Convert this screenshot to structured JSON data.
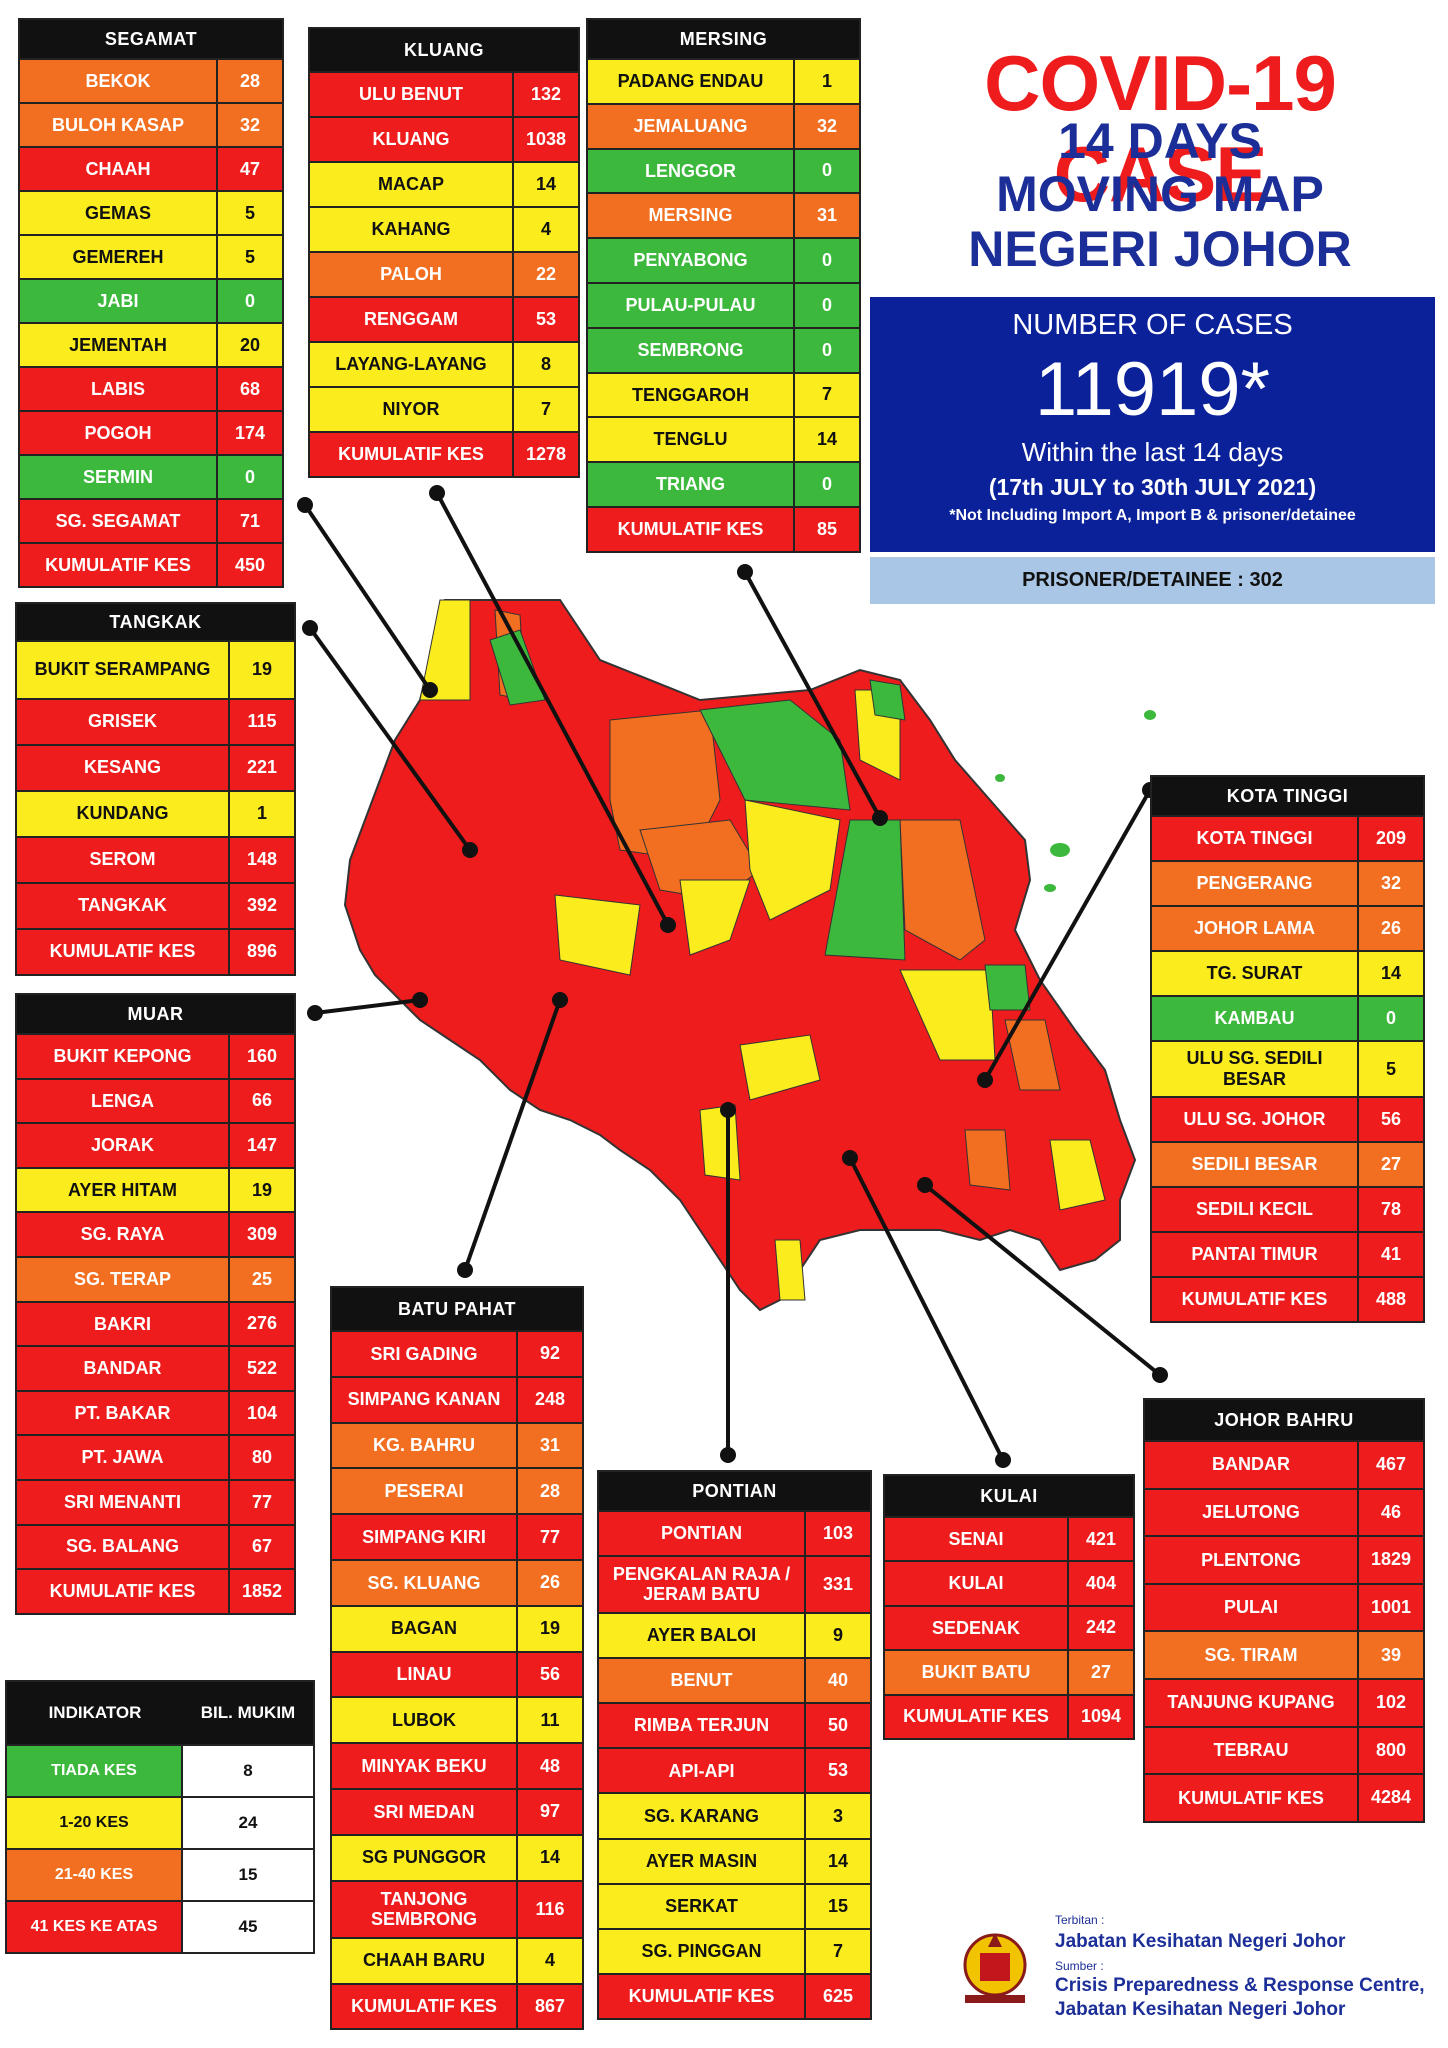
{
  "title": {
    "line1": "COVID-19 CASE",
    "line2": "14 DAYS",
    "line3": "MOVING MAP",
    "line4": "NEGERI JOHOR"
  },
  "summary": {
    "label": "NUMBER OF CASES",
    "count": "11919*",
    "period_line": "Within the last 14 days",
    "date_range": "(17th JULY to 30th JULY 2021)",
    "note": "*Not Including Import A, Import B & prisoner/detainee",
    "prisoner": "PRISONER/DETAINEE : 302"
  },
  "colors": {
    "red": "#ee1c1c",
    "orange": "#f26f21",
    "yellow": "#fbec1e",
    "green": "#3cb93c",
    "navy": "#0b2199"
  },
  "districts": {
    "segamat": {
      "name": "SEGAMAT",
      "rows": [
        {
          "n": "BEKOK",
          "v": "28",
          "c": "ora"
        },
        {
          "n": "BULOH KASAP",
          "v": "32",
          "c": "ora"
        },
        {
          "n": "CHAAH",
          "v": "47",
          "c": "red"
        },
        {
          "n": "GEMAS",
          "v": "5",
          "c": "yel"
        },
        {
          "n": "GEMEREH",
          "v": "5",
          "c": "yel"
        },
        {
          "n": "JABI",
          "v": "0",
          "c": "grn"
        },
        {
          "n": "JEMENTAH",
          "v": "20",
          "c": "yel"
        },
        {
          "n": "LABIS",
          "v": "68",
          "c": "red"
        },
        {
          "n": "POGOH",
          "v": "174",
          "c": "red"
        },
        {
          "n": "SERMIN",
          "v": "0",
          "c": "grn"
        },
        {
          "n": "SG. SEGAMAT",
          "v": "71",
          "c": "red"
        },
        {
          "n": "KUMULATIF KES",
          "v": "450",
          "c": "red"
        }
      ]
    },
    "kluang": {
      "name": "KLUANG",
      "rows": [
        {
          "n": "ULU BENUT",
          "v": "132",
          "c": "red"
        },
        {
          "n": "KLUANG",
          "v": "1038",
          "c": "red"
        },
        {
          "n": "MACAP",
          "v": "14",
          "c": "yel"
        },
        {
          "n": "KAHANG",
          "v": "4",
          "c": "yel"
        },
        {
          "n": "PALOH",
          "v": "22",
          "c": "ora"
        },
        {
          "n": "RENGGAM",
          "v": "53",
          "c": "red"
        },
        {
          "n": "LAYANG-LAYANG",
          "v": "8",
          "c": "yel"
        },
        {
          "n": "NIYOR",
          "v": "7",
          "c": "yel"
        },
        {
          "n": "KUMULATIF KES",
          "v": "1278",
          "c": "red"
        }
      ]
    },
    "mersing": {
      "name": "MERSING",
      "rows": [
        {
          "n": "PADANG ENDAU",
          "v": "1",
          "c": "yel"
        },
        {
          "n": "JEMALUANG",
          "v": "32",
          "c": "ora"
        },
        {
          "n": "LENGGOR",
          "v": "0",
          "c": "grn"
        },
        {
          "n": "MERSING",
          "v": "31",
          "c": "ora"
        },
        {
          "n": "PENYABONG",
          "v": "0",
          "c": "grn"
        },
        {
          "n": "PULAU-PULAU",
          "v": "0",
          "c": "grn"
        },
        {
          "n": "SEMBRONG",
          "v": "0",
          "c": "grn"
        },
        {
          "n": "TENGGAROH",
          "v": "7",
          "c": "yel"
        },
        {
          "n": "TENGLU",
          "v": "14",
          "c": "yel"
        },
        {
          "n": "TRIANG",
          "v": "0",
          "c": "grn"
        },
        {
          "n": "KUMULATIF KES",
          "v": "85",
          "c": "red"
        }
      ]
    },
    "tangkak": {
      "name": "TANGKAK",
      "rows": [
        {
          "n": "BUKIT SERAMPANG",
          "v": "19",
          "c": "yel"
        },
        {
          "n": "GRISEK",
          "v": "115",
          "c": "red"
        },
        {
          "n": "KESANG",
          "v": "221",
          "c": "red"
        },
        {
          "n": "KUNDANG",
          "v": "1",
          "c": "yel"
        },
        {
          "n": "SEROM",
          "v": "148",
          "c": "red"
        },
        {
          "n": "TANGKAK",
          "v": "392",
          "c": "red"
        },
        {
          "n": "KUMULATIF KES",
          "v": "896",
          "c": "red"
        }
      ]
    },
    "muar": {
      "name": "MUAR",
      "rows": [
        {
          "n": "BUKIT KEPONG",
          "v": "160",
          "c": "red"
        },
        {
          "n": "LENGA",
          "v": "66",
          "c": "red"
        },
        {
          "n": "JORAK",
          "v": "147",
          "c": "red"
        },
        {
          "n": "AYER HITAM",
          "v": "19",
          "c": "yel"
        },
        {
          "n": "SG. RAYA",
          "v": "309",
          "c": "red"
        },
        {
          "n": "SG. TERAP",
          "v": "25",
          "c": "ora"
        },
        {
          "n": "BAKRI",
          "v": "276",
          "c": "red"
        },
        {
          "n": "BANDAR",
          "v": "522",
          "c": "red"
        },
        {
          "n": "PT. BAKAR",
          "v": "104",
          "c": "red"
        },
        {
          "n": "PT. JAWA",
          "v": "80",
          "c": "red"
        },
        {
          "n": "SRI MENANTI",
          "v": "77",
          "c": "red"
        },
        {
          "n": "SG. BALANG",
          "v": "67",
          "c": "red"
        },
        {
          "n": "KUMULATIF KES",
          "v": "1852",
          "c": "red"
        }
      ]
    },
    "batupahat": {
      "name": "BATU PAHAT",
      "rows": [
        {
          "n": "SRI GADING",
          "v": "92",
          "c": "red"
        },
        {
          "n": "SIMPANG KANAN",
          "v": "248",
          "c": "red"
        },
        {
          "n": "KG. BAHRU",
          "v": "31",
          "c": "ora"
        },
        {
          "n": "PESERAI",
          "v": "28",
          "c": "ora"
        },
        {
          "n": "SIMPANG KIRI",
          "v": "77",
          "c": "red"
        },
        {
          "n": "SG. KLUANG",
          "v": "26",
          "c": "ora"
        },
        {
          "n": "BAGAN",
          "v": "19",
          "c": "yel"
        },
        {
          "n": "LINAU",
          "v": "56",
          "c": "red"
        },
        {
          "n": "LUBOK",
          "v": "11",
          "c": "yel"
        },
        {
          "n": "MINYAK BEKU",
          "v": "48",
          "c": "red"
        },
        {
          "n": "SRI MEDAN",
          "v": "97",
          "c": "red"
        },
        {
          "n": "SG PUNGGOR",
          "v": "14",
          "c": "yel"
        },
        {
          "n": "TANJONG SEMBRONG",
          "v": "116",
          "c": "red"
        },
        {
          "n": "CHAAH BARU",
          "v": "4",
          "c": "yel"
        },
        {
          "n": "KUMULATIF KES",
          "v": "867",
          "c": "red"
        }
      ]
    },
    "pontian": {
      "name": "PONTIAN",
      "rows": [
        {
          "n": "PONTIAN",
          "v": "103",
          "c": "red"
        },
        {
          "n": "PENGKALAN RAJA / JERAM BATU",
          "v": "331",
          "c": "red"
        },
        {
          "n": "AYER BALOI",
          "v": "9",
          "c": "yel"
        },
        {
          "n": "BENUT",
          "v": "40",
          "c": "ora"
        },
        {
          "n": "RIMBA TERJUN",
          "v": "50",
          "c": "red"
        },
        {
          "n": "API-API",
          "v": "53",
          "c": "red"
        },
        {
          "n": "SG. KARANG",
          "v": "3",
          "c": "yel"
        },
        {
          "n": "AYER MASIN",
          "v": "14",
          "c": "yel"
        },
        {
          "n": "SERKAT",
          "v": "15",
          "c": "yel"
        },
        {
          "n": "SG. PINGGAN",
          "v": "7",
          "c": "yel"
        },
        {
          "n": "KUMULATIF KES",
          "v": "625",
          "c": "red"
        }
      ]
    },
    "kulai": {
      "name": "KULAI",
      "rows": [
        {
          "n": "SENAI",
          "v": "421",
          "c": "red"
        },
        {
          "n": "KULAI",
          "v": "404",
          "c": "red"
        },
        {
          "n": "SEDENAK",
          "v": "242",
          "c": "red"
        },
        {
          "n": "BUKIT BATU",
          "v": "27",
          "c": "ora"
        },
        {
          "n": "KUMULATIF KES",
          "v": "1094",
          "c": "red"
        }
      ]
    },
    "kotatinggi": {
      "name": "KOTA TINGGI",
      "rows": [
        {
          "n": "KOTA TINGGI",
          "v": "209",
          "c": "red"
        },
        {
          "n": "PENGERANG",
          "v": "32",
          "c": "ora"
        },
        {
          "n": "JOHOR LAMA",
          "v": "26",
          "c": "ora"
        },
        {
          "n": "TG. SURAT",
          "v": "14",
          "c": "yel"
        },
        {
          "n": "KAMBAU",
          "v": "0",
          "c": "grn"
        },
        {
          "n": "ULU SG. SEDILI BESAR",
          "v": "5",
          "c": "yel"
        },
        {
          "n": "ULU SG. JOHOR",
          "v": "56",
          "c": "red"
        },
        {
          "n": "SEDILI BESAR",
          "v": "27",
          "c": "ora"
        },
        {
          "n": "SEDILI KECIL",
          "v": "78",
          "c": "red"
        },
        {
          "n": "PANTAI TIMUR",
          "v": "41",
          "c": "red"
        },
        {
          "n": "KUMULATIF KES",
          "v": "488",
          "c": "red"
        }
      ]
    },
    "johorbahru": {
      "name": "JOHOR BAHRU",
      "rows": [
        {
          "n": "BANDAR",
          "v": "467",
          "c": "red"
        },
        {
          "n": "JELUTONG",
          "v": "46",
          "c": "red"
        },
        {
          "n": "PLENTONG",
          "v": "1829",
          "c": "red"
        },
        {
          "n": "PULAI",
          "v": "1001",
          "c": "red"
        },
        {
          "n": "SG. TIRAM",
          "v": "39",
          "c": "ora"
        },
        {
          "n": "TANJUNG KUPANG",
          "v": "102",
          "c": "red"
        },
        {
          "n": "TEBRAU",
          "v": "800",
          "c": "red"
        },
        {
          "n": "KUMULATIF KES",
          "v": "4284",
          "c": "red"
        }
      ]
    }
  },
  "legend": {
    "col1": "INDIKATOR",
    "col2": "BIL. MUKIM",
    "rows": [
      {
        "label": "TIADA KES",
        "count": "8",
        "c": "grn"
      },
      {
        "label": "1-20 KES",
        "count": "24",
        "c": "yel"
      },
      {
        "label": "21-40 KES",
        "count": "15",
        "c": "ora"
      },
      {
        "label": "41 KES KE ATAS",
        "count": "45",
        "c": "red"
      }
    ]
  },
  "footer": {
    "published_label": "Terbitan :",
    "publisher": "Jabatan Kesihatan Negeri Johor",
    "source_label": "Sumber :",
    "source_1": "Crisis Preparedness & Response Centre,",
    "source_2": "Jabatan Kesihatan Negeri Johor"
  }
}
